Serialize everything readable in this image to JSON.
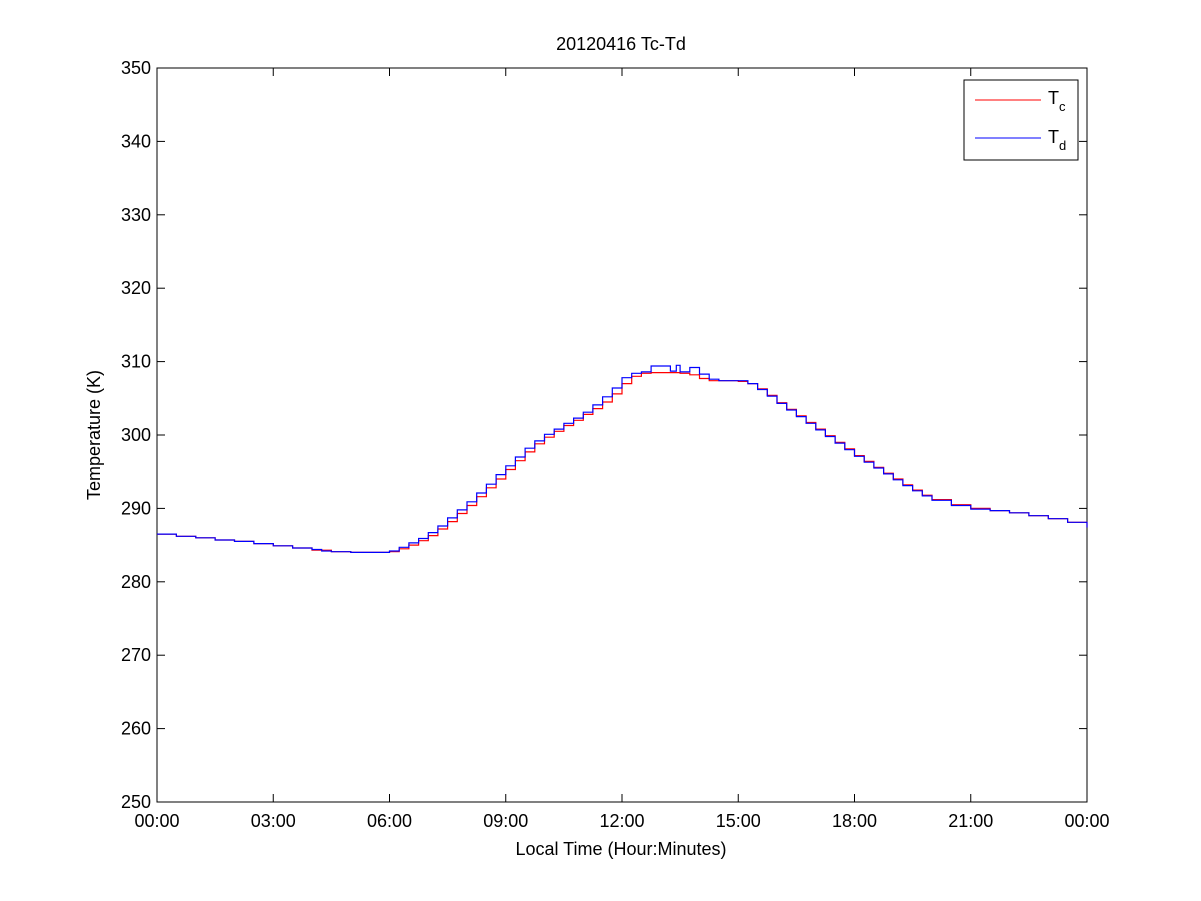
{
  "chart_data": {
    "type": "line",
    "title": "20120416 Tc-Td",
    "xlabel": "Local Time (Hour:Minutes)",
    "ylabel": "Temperature (K)",
    "xlim": [
      0,
      24
    ],
    "ylim": [
      250,
      350
    ],
    "xticks": [
      0,
      3,
      6,
      9,
      12,
      15,
      18,
      21,
      24
    ],
    "xtick_labels": [
      "00:00",
      "03:00",
      "06:00",
      "09:00",
      "12:00",
      "15:00",
      "18:00",
      "21:00",
      "00:00"
    ],
    "yticks": [
      250,
      260,
      270,
      280,
      290,
      300,
      310,
      320,
      330,
      340,
      350
    ],
    "ytick_labels": [
      "250",
      "260",
      "270",
      "280",
      "290",
      "300",
      "310",
      "320",
      "330",
      "340",
      "350"
    ],
    "grid": false,
    "legend_position": "top-right",
    "series": [
      {
        "legend_main": "T",
        "legend_sub": "c",
        "color": "#ff0000",
        "x": [
          0.0,
          0.5,
          1.0,
          1.5,
          2.0,
          2.5,
          3.0,
          3.5,
          4.0,
          4.5,
          5.0,
          5.5,
          6.0,
          6.25,
          6.5,
          6.75,
          7.0,
          7.25,
          7.5,
          7.75,
          8.0,
          8.25,
          8.5,
          8.75,
          9.0,
          9.25,
          9.5,
          9.75,
          10.0,
          10.25,
          10.5,
          10.75,
          11.0,
          11.25,
          11.5,
          11.75,
          12.0,
          12.25,
          12.5,
          12.75,
          13.0,
          13.25,
          13.5,
          13.75,
          14.0,
          14.25,
          14.5,
          14.75,
          15.0,
          15.25,
          15.5,
          15.75,
          16.0,
          16.25,
          16.5,
          16.75,
          17.0,
          17.25,
          17.5,
          17.75,
          18.0,
          18.25,
          18.5,
          18.75,
          19.0,
          19.25,
          19.5,
          19.75,
          20.0,
          20.5,
          21.0,
          21.5,
          22.0,
          22.5,
          23.0,
          23.5,
          24.0
        ],
        "y": [
          286.5,
          286.2,
          286.0,
          285.7,
          285.5,
          285.2,
          284.9,
          284.6,
          284.3,
          284.1,
          284.0,
          284.0,
          284.1,
          284.5,
          285.0,
          285.6,
          286.3,
          287.2,
          288.2,
          289.3,
          290.4,
          291.6,
          292.8,
          294.0,
          295.3,
          296.5,
          297.7,
          298.8,
          299.7,
          300.5,
          301.3,
          302.0,
          302.8,
          303.6,
          304.5,
          305.6,
          307.0,
          308.0,
          308.4,
          308.5,
          308.5,
          308.5,
          308.4,
          308.2,
          307.7,
          307.4,
          307.4,
          307.4,
          307.3,
          307.0,
          306.3,
          305.4,
          304.4,
          303.5,
          302.6,
          301.7,
          300.8,
          299.9,
          299.0,
          298.1,
          297.2,
          296.4,
          295.6,
          294.8,
          294.0,
          293.2,
          292.5,
          291.8,
          291.2,
          290.5,
          290.0,
          289.7,
          289.4,
          289.0,
          288.6,
          288.1,
          287.4
        ]
      },
      {
        "legend_main": "T",
        "legend_sub": "d",
        "color": "#0000ff",
        "x": [
          0.0,
          0.5,
          1.0,
          1.5,
          2.0,
          2.5,
          3.0,
          3.5,
          4.0,
          4.25,
          4.5,
          5.0,
          5.5,
          6.0,
          6.25,
          6.5,
          6.75,
          7.0,
          7.25,
          7.5,
          7.75,
          8.0,
          8.25,
          8.5,
          8.75,
          9.0,
          9.25,
          9.5,
          9.75,
          10.0,
          10.25,
          10.5,
          10.75,
          11.0,
          11.25,
          11.5,
          11.75,
          12.0,
          12.25,
          12.5,
          12.75,
          13.0,
          13.25,
          13.4,
          13.5,
          13.75,
          14.0,
          14.25,
          14.5,
          14.75,
          15.0,
          15.25,
          15.5,
          15.75,
          16.0,
          16.25,
          16.5,
          16.75,
          17.0,
          17.25,
          17.5,
          17.75,
          18.0,
          18.25,
          18.5,
          18.75,
          19.0,
          19.25,
          19.5,
          19.75,
          20.0,
          20.5,
          21.0,
          21.5,
          22.0,
          22.5,
          23.0,
          23.5,
          24.0
        ],
        "y": [
          286.5,
          286.2,
          286.0,
          285.7,
          285.5,
          285.2,
          284.9,
          284.6,
          284.4,
          284.2,
          284.1,
          284.0,
          284.0,
          284.2,
          284.7,
          285.3,
          285.9,
          286.7,
          287.6,
          288.7,
          289.8,
          290.9,
          292.1,
          293.3,
          294.6,
          295.8,
          297.0,
          298.2,
          299.2,
          300.1,
          300.8,
          301.6,
          302.3,
          303.1,
          304.1,
          305.2,
          306.4,
          307.8,
          308.4,
          308.6,
          309.4,
          309.4,
          308.7,
          309.5,
          308.6,
          309.2,
          308.3,
          307.6,
          307.4,
          307.4,
          307.4,
          307.0,
          306.2,
          305.3,
          304.3,
          303.4,
          302.5,
          301.6,
          300.7,
          299.8,
          298.9,
          298.0,
          297.1,
          296.3,
          295.5,
          294.7,
          293.9,
          293.1,
          292.4,
          291.7,
          291.1,
          290.4,
          289.9,
          289.7,
          289.4,
          289.0,
          288.6,
          288.1,
          287.4
        ]
      }
    ]
  }
}
